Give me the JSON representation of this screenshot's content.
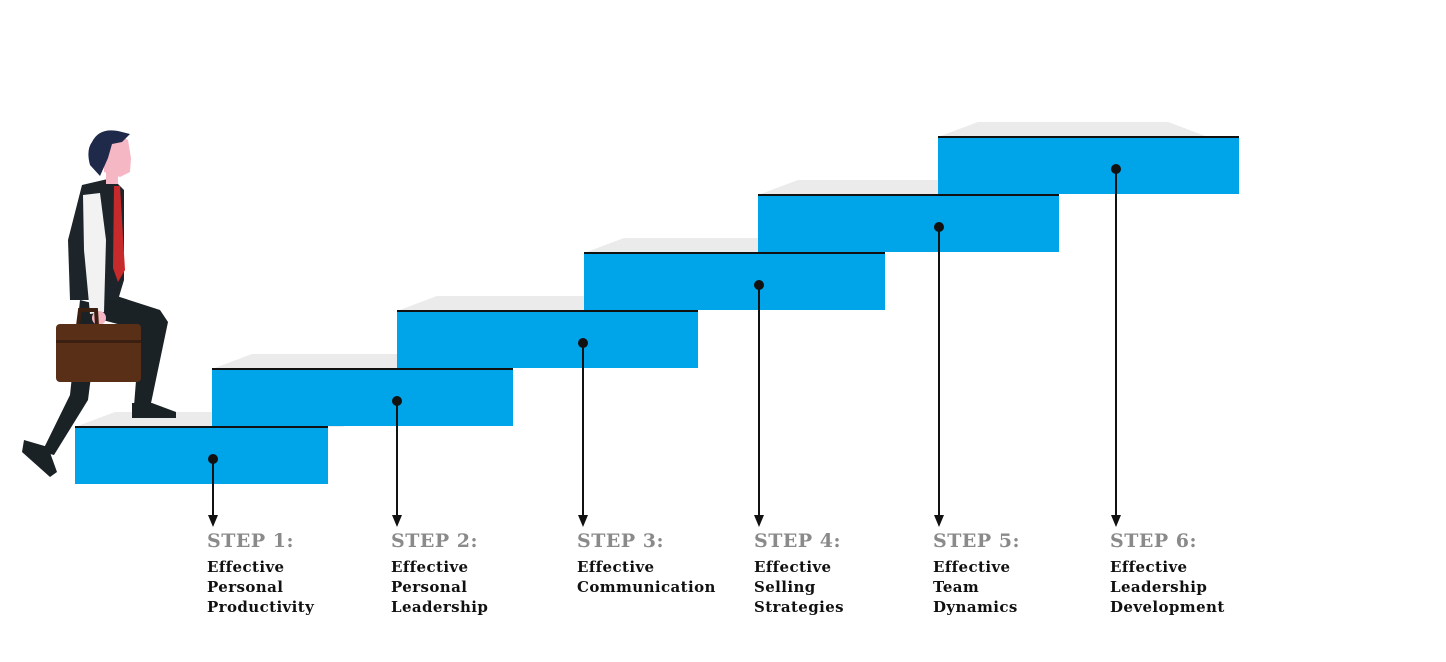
{
  "colors": {
    "step_fill": "#00a4e8",
    "step_top": "#ebebeb",
    "edge": "#111111",
    "label_gray": "#8a8a8a",
    "text_dark": "#111111"
  },
  "illustration": {
    "subject": "businessman-climbing-stairs",
    "icon": "businessman-with-briefcase-icon"
  },
  "steps": [
    {
      "label": "STEP 1:",
      "title_lines": [
        "Effective",
        "Personal",
        "Productivity"
      ]
    },
    {
      "label": "STEP 2:",
      "title_lines": [
        "Effective",
        "Personal",
        "Leadership"
      ]
    },
    {
      "label": "STEP 3:",
      "title_lines": [
        "Effective",
        "Communication"
      ]
    },
    {
      "label": "STEP 4:",
      "title_lines": [
        "Effective",
        "Selling",
        "Strategies"
      ]
    },
    {
      "label": "STEP 5:",
      "title_lines": [
        "Effective",
        "Team",
        "Dynamics"
      ]
    },
    {
      "label": "STEP 6:",
      "title_lines": [
        "Effective",
        "Leadership",
        "Development"
      ]
    }
  ]
}
